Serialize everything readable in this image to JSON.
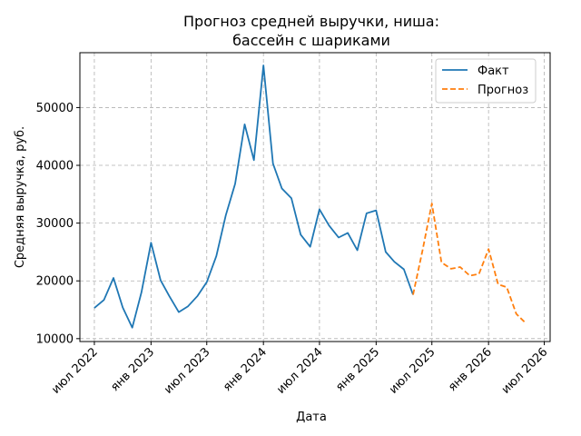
{
  "chart_data": {
    "type": "line",
    "title": [
      "Прогноз средней выручки, ниша:",
      "бассейн с шариками"
    ],
    "xlabel": "Дата",
    "ylabel": "Средняя выручка, руб.",
    "ylim": [
      9500,
      59500
    ],
    "yticks": [
      10000,
      20000,
      30000,
      40000,
      50000
    ],
    "xlim": [
      "2022-05-15",
      "2026-07-20"
    ],
    "xticks": [
      {
        "date": "2022-07-01",
        "label": "июл 2022"
      },
      {
        "date": "2023-01-01",
        "label": "янв 2023"
      },
      {
        "date": "2023-07-01",
        "label": "июл 2023"
      },
      {
        "date": "2024-01-01",
        "label": "янв 2024"
      },
      {
        "date": "2024-07-01",
        "label": "июл 2024"
      },
      {
        "date": "2025-01-01",
        "label": "янв 2025"
      },
      {
        "date": "2025-07-01",
        "label": "июл 2025"
      },
      {
        "date": "2026-01-01",
        "label": "янв 2026"
      },
      {
        "date": "2026-07-01",
        "label": "июл 2026"
      }
    ],
    "grid": true,
    "legend_position": "top-right",
    "series": [
      {
        "name": "Факт",
        "color": "#1f77b4",
        "style": "solid",
        "points": [
          [
            "2022-07-01",
            15300
          ],
          [
            "2022-08-01",
            16700
          ],
          [
            "2022-09-01",
            20500
          ],
          [
            "2022-10-01",
            15400
          ],
          [
            "2022-11-01",
            11900
          ],
          [
            "2022-12-01",
            18000
          ],
          [
            "2023-01-01",
            26600
          ],
          [
            "2023-02-01",
            20100
          ],
          [
            "2023-03-01",
            17400
          ],
          [
            "2023-04-01",
            14600
          ],
          [
            "2023-05-01",
            15600
          ],
          [
            "2023-06-01",
            17400
          ],
          [
            "2023-07-01",
            19800
          ],
          [
            "2023-08-01",
            24300
          ],
          [
            "2023-09-01",
            31400
          ],
          [
            "2023-10-01",
            36800
          ],
          [
            "2023-11-01",
            47100
          ],
          [
            "2023-12-01",
            40900
          ],
          [
            "2024-01-01",
            57300
          ],
          [
            "2024-02-01",
            40300
          ],
          [
            "2024-03-01",
            36000
          ],
          [
            "2024-04-01",
            34300
          ],
          [
            "2024-05-01",
            28000
          ],
          [
            "2024-06-01",
            25900
          ],
          [
            "2024-07-01",
            32400
          ],
          [
            "2024-08-01",
            29600
          ],
          [
            "2024-09-01",
            27500
          ],
          [
            "2024-10-01",
            28300
          ],
          [
            "2024-11-01",
            25300
          ],
          [
            "2024-12-01",
            31700
          ],
          [
            "2025-01-01",
            32200
          ],
          [
            "2025-02-01",
            25000
          ],
          [
            "2025-03-01",
            23300
          ],
          [
            "2025-04-01",
            22000
          ],
          [
            "2025-05-01",
            17600
          ]
        ]
      },
      {
        "name": "Прогноз",
        "color": "#ff7f0e",
        "style": "dashed",
        "points": [
          [
            "2025-05-01",
            17600
          ],
          [
            "2025-06-01",
            25400
          ],
          [
            "2025-07-01",
            33400
          ],
          [
            "2025-08-01",
            23200
          ],
          [
            "2025-09-01",
            22100
          ],
          [
            "2025-10-01",
            22400
          ],
          [
            "2025-11-01",
            20900
          ],
          [
            "2025-12-01",
            21200
          ],
          [
            "2026-01-01",
            25500
          ],
          [
            "2026-02-01",
            19400
          ],
          [
            "2026-03-01",
            18900
          ],
          [
            "2026-04-01",
            14300
          ],
          [
            "2026-05-01",
            12700
          ]
        ]
      }
    ]
  }
}
